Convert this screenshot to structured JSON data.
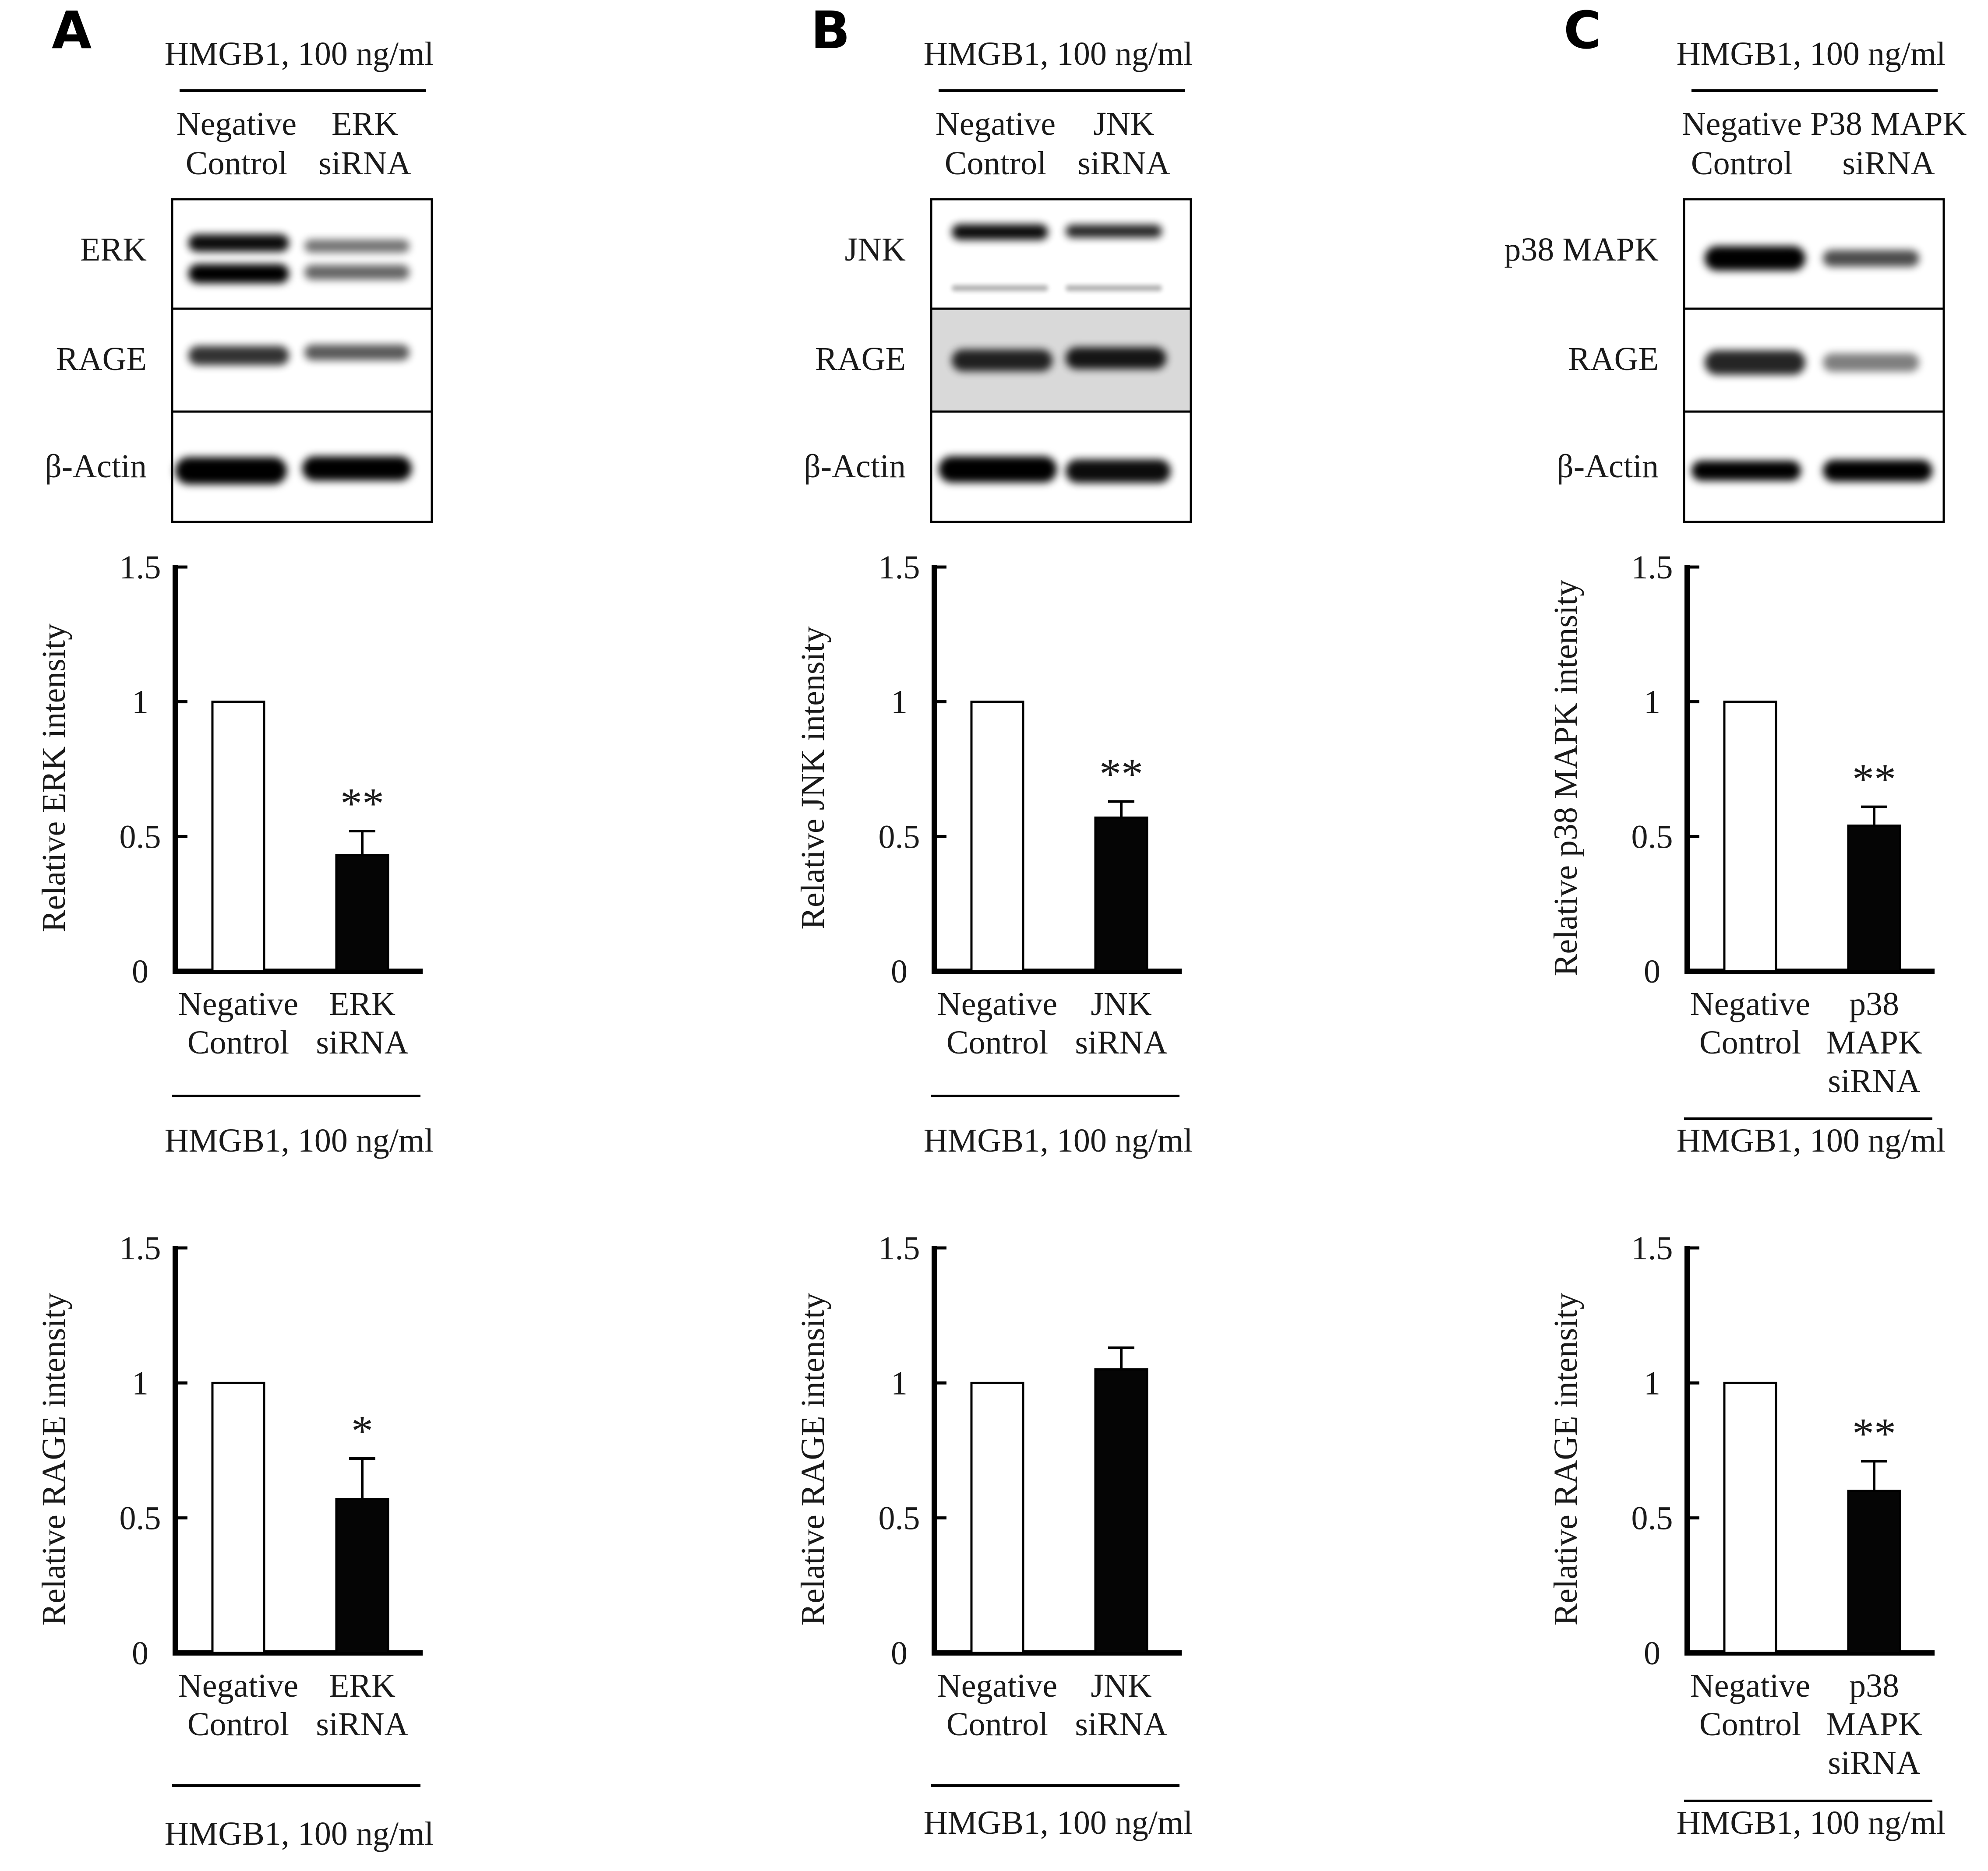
{
  "figure": {
    "panels": [
      {
        "letter": "A",
        "treatment_label": "HMGB1, 100 ng/ml",
        "lane_labels": [
          [
            "Negative",
            "Control"
          ],
          [
            "ERK",
            "siRNA"
          ]
        ],
        "blot_rows": [
          "ERK",
          "RAGE",
          "β-Actin"
        ],
        "charts": [
          {
            "ylabel": "Relative ERK intensity",
            "categories": [
              [
                "Negative",
                "Control"
              ],
              [
                "ERK",
                "siRNA"
              ]
            ],
            "values": [
              1.0,
              0.43
            ],
            "errors": [
              0,
              0.09
            ],
            "significance": "**",
            "treatment_label": "HMGB1, 100 ng/ml"
          },
          {
            "ylabel": "Relative RAGE intensity",
            "categories": [
              [
                "Negative",
                "Control"
              ],
              [
                "ERK",
                "siRNA"
              ]
            ],
            "values": [
              1.0,
              0.57
            ],
            "errors": [
              0,
              0.15
            ],
            "significance": "*",
            "treatment_label": "HMGB1, 100 ng/ml"
          }
        ]
      },
      {
        "letter": "B",
        "treatment_label": "HMGB1, 100 ng/ml",
        "lane_labels": [
          [
            "Negative",
            "Control"
          ],
          [
            "JNK",
            "siRNA"
          ]
        ],
        "blot_rows": [
          "JNK",
          "RAGE",
          "β-Actin"
        ],
        "charts": [
          {
            "ylabel": "Relative JNK intensity",
            "categories": [
              [
                "Negative",
                "Control"
              ],
              [
                "JNK",
                "siRNA"
              ]
            ],
            "values": [
              1.0,
              0.57
            ],
            "errors": [
              0,
              0.06
            ],
            "significance": "**",
            "treatment_label": "HMGB1, 100 ng/ml"
          },
          {
            "ylabel": "Relative RAGE intensity",
            "categories": [
              [
                "Negative",
                "Control"
              ],
              [
                "JNK",
                "siRNA"
              ]
            ],
            "values": [
              1.0,
              1.05
            ],
            "errors": [
              0,
              0.08
            ],
            "significance": "",
            "treatment_label": "HMGB1, 100 ng/ml"
          }
        ]
      },
      {
        "letter": "C",
        "treatment_label": "HMGB1, 100 ng/ml",
        "lane_labels": [
          [
            "Negative",
            "Control"
          ],
          [
            "P38 MAPK",
            "siRNA"
          ]
        ],
        "blot_rows": [
          "p38 MAPK",
          "RAGE",
          "β-Actin"
        ],
        "charts": [
          {
            "ylabel": "Relative p38 MAPK intensity",
            "categories": [
              [
                "Negative",
                "Control"
              ],
              [
                "p38",
                "MAPK",
                "siRNA"
              ]
            ],
            "values": [
              1.0,
              0.54
            ],
            "errors": [
              0,
              0.07
            ],
            "significance": "**",
            "treatment_label": "HMGB1, 100 ng/ml"
          },
          {
            "ylabel": "Relative RAGE intensity",
            "categories": [
              [
                "Negative",
                "Control"
              ],
              [
                "p38",
                "MAPK",
                "siRNA"
              ]
            ],
            "values": [
              1.0,
              0.6
            ],
            "errors": [
              0,
              0.11
            ],
            "significance": "**",
            "treatment_label": "HMGB1, 100 ng/ml"
          }
        ]
      }
    ]
  },
  "chart_data": [
    {
      "type": "bar",
      "title": "",
      "xlabel": "HMGB1, 100 ng/ml",
      "ylabel": "Relative ERK intensity",
      "categories": [
        "Negative Control",
        "ERK siRNA"
      ],
      "values": [
        1.0,
        0.43
      ],
      "errors": [
        0,
        0.09
      ],
      "ylim": [
        0,
        1.5
      ],
      "yticks": [
        "0",
        "0.5",
        "1",
        "1.5"
      ],
      "annotations": [
        "**"
      ],
      "colors": [
        "#ffffff",
        "#000000"
      ]
    },
    {
      "type": "bar",
      "title": "",
      "xlabel": "HMGB1, 100 ng/ml",
      "ylabel": "Relative RAGE intensity",
      "categories": [
        "Negative Control",
        "ERK siRNA"
      ],
      "values": [
        1.0,
        0.57
      ],
      "errors": [
        0,
        0.15
      ],
      "ylim": [
        0,
        1.5
      ],
      "yticks": [
        "0",
        "0.5",
        "1",
        "1.5"
      ],
      "annotations": [
        "*"
      ],
      "colors": [
        "#ffffff",
        "#000000"
      ]
    },
    {
      "type": "bar",
      "title": "",
      "xlabel": "HMGB1, 100 ng/ml",
      "ylabel": "Relative JNK intensity",
      "categories": [
        "Negative Control",
        "JNK siRNA"
      ],
      "values": [
        1.0,
        0.57
      ],
      "errors": [
        0,
        0.06
      ],
      "ylim": [
        0,
        1.5
      ],
      "yticks": [
        "0",
        "0.5",
        "1",
        "1.5"
      ],
      "annotations": [
        "**"
      ],
      "colors": [
        "#ffffff",
        "#000000"
      ]
    },
    {
      "type": "bar",
      "title": "",
      "xlabel": "HMGB1, 100 ng/ml",
      "ylabel": "Relative RAGE intensity",
      "categories": [
        "Negative Control",
        "JNK siRNA"
      ],
      "values": [
        1.0,
        1.05
      ],
      "errors": [
        0,
        0.08
      ],
      "ylim": [
        0,
        1.5
      ],
      "yticks": [
        "0",
        "0.5",
        "1",
        "1.5"
      ],
      "annotations": [],
      "colors": [
        "#ffffff",
        "#000000"
      ]
    },
    {
      "type": "bar",
      "title": "",
      "xlabel": "HMGB1, 100 ng/ml",
      "ylabel": "Relative p38 MAPK intensity",
      "categories": [
        "Negative Control",
        "p38 MAPK siRNA"
      ],
      "values": [
        1.0,
        0.54
      ],
      "errors": [
        0,
        0.07
      ],
      "ylim": [
        0,
        1.5
      ],
      "yticks": [
        "0",
        "0.5",
        "1",
        "1.5"
      ],
      "annotations": [
        "**"
      ],
      "colors": [
        "#ffffff",
        "#000000"
      ]
    },
    {
      "type": "bar",
      "title": "",
      "xlabel": "HMGB1, 100 ng/ml",
      "ylabel": "Relative RAGE intensity",
      "categories": [
        "Negative Control",
        "p38 MAPK siRNA"
      ],
      "values": [
        1.0,
        0.6
      ],
      "errors": [
        0,
        0.11
      ],
      "ylim": [
        0,
        1.5
      ],
      "yticks": [
        "0",
        "0.5",
        "1",
        "1.5"
      ],
      "annotations": [
        "**"
      ],
      "colors": [
        "#ffffff",
        "#000000"
      ]
    }
  ]
}
